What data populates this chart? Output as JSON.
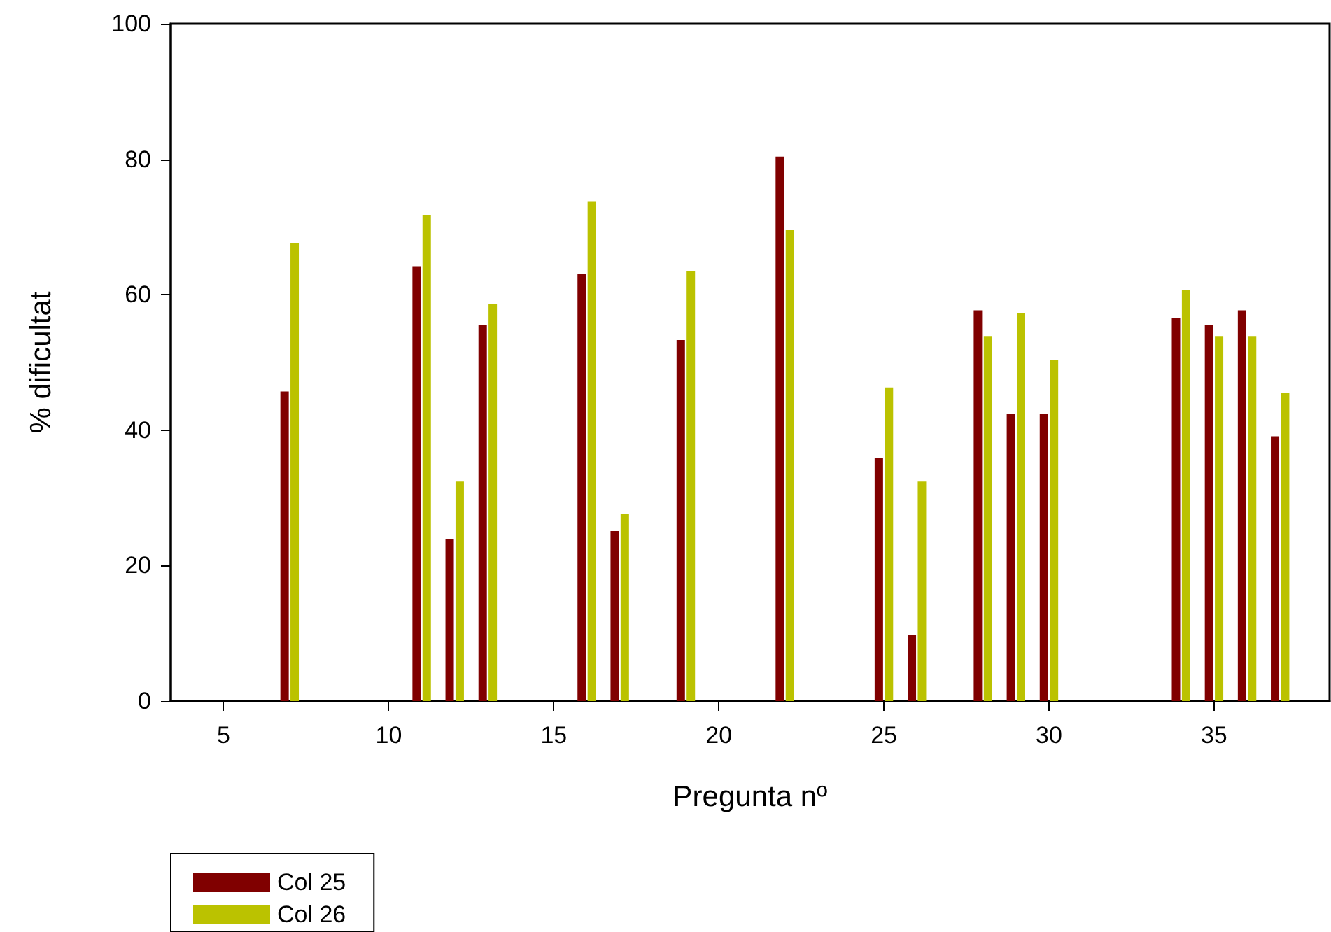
{
  "chart_data": {
    "type": "bar",
    "xlabel": "Pregunta nº",
    "ylabel": "% dificultat",
    "x": [
      7,
      11,
      12,
      13,
      16,
      17,
      19,
      22,
      25,
      26,
      28,
      29,
      30,
      34,
      35,
      36,
      37
    ],
    "series": [
      {
        "name": "Col 25",
        "color": "#800000",
        "values": [
          45.7,
          64.2,
          23.9,
          55.5,
          63.1,
          25.1,
          53.3,
          80.4,
          35.9,
          9.8,
          57.7,
          42.4,
          42.4,
          56.5,
          55.5,
          57.7,
          39.1
        ]
      },
      {
        "name": "Col 26",
        "color": "#bbc200",
        "values": [
          67.6,
          71.8,
          32.4,
          58.6,
          73.8,
          27.6,
          63.5,
          69.6,
          46.3,
          32.4,
          53.9,
          57.3,
          50.3,
          60.7,
          53.9,
          53.9,
          45.5
        ]
      }
    ],
    "xlim": [
      3.4,
      38.5
    ],
    "xticks": [
      5,
      10,
      15,
      20,
      25,
      30,
      35
    ],
    "ylim": [
      0,
      100
    ],
    "yticks": [
      0,
      20,
      40,
      60,
      80,
      100
    ],
    "grid": false,
    "legend": "bottom left"
  }
}
